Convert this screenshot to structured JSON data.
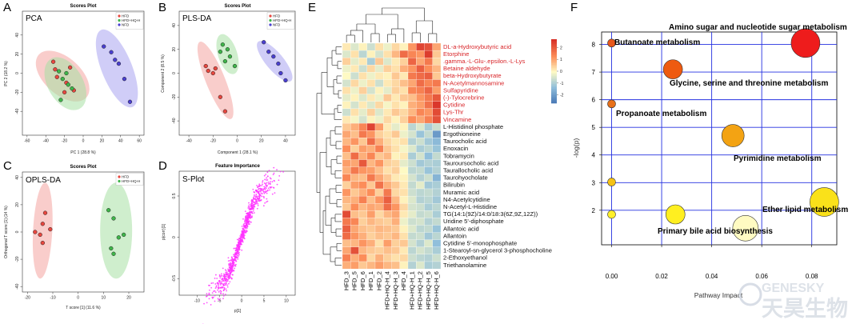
{
  "panels": {
    "A": {
      "letter": "A",
      "title": "Scores Plot",
      "label": "PCA",
      "xlabel": "PC 1 (28.8 %)",
      "ylabel": "PC 2 (18.2 %)",
      "legend": [
        "HFD",
        "HFD+HQ-H",
        "NFD"
      ]
    },
    "B": {
      "letter": "B",
      "title": "Scores Plot",
      "label": "PLS-DA",
      "xlabel": "Component 1 (28.1 %)",
      "ylabel": "Component 2 (8.5 %)",
      "legend": [
        "HFD",
        "HFD+HQ-H",
        "NFD"
      ]
    },
    "C": {
      "letter": "C",
      "title": "Scores Plot",
      "label": "OPLS-DA",
      "xlabel": "T score [1] (11.6 %)",
      "ylabel": "Orthogonal T score [1] (14 %)",
      "legend": [
        "HFD",
        "HFD+HQ-H"
      ]
    },
    "D": {
      "letter": "D",
      "title": "Feature Importance",
      "label": "S-Plot",
      "xlabel": "p[1]",
      "ylabel": "p(corr)[1]"
    },
    "E": {
      "letter": "E"
    },
    "F": {
      "letter": "F",
      "xlabel": "Pathway Impact",
      "ylabel": "-log(p)"
    }
  },
  "colors": {
    "hfd": "#e8473f",
    "hq": "#3fb54a",
    "nfd": "#4a3fd0",
    "hfd_fill": "#f4a4a0",
    "hq_fill": "#a8e0a4",
    "nfd_fill": "#a9a4f0",
    "splot": "#ff33ff",
    "grid_blue": "#2430e0"
  },
  "logo": {
    "line1": "GENESKY",
    "line2": "天昊生物"
  },
  "chart_data": [
    {
      "type": "scatter",
      "panel": "A",
      "title": "Scores Plot",
      "xlabel": "PC 1 (28.8 %)",
      "ylabel": "PC 2 (18.2 %)",
      "xlim": [
        -65,
        65
      ],
      "ylim": [
        -65,
        65
      ],
      "xticks": [
        -60,
        -40,
        -20,
        0,
        20,
        40,
        60
      ],
      "yticks": [
        -40,
        -20,
        0,
        20,
        40
      ],
      "series": [
        {
          "name": "HFD",
          "points": [
            [
              -32,
              12
            ],
            [
              -30,
              4
            ],
            [
              -28,
              -4
            ],
            [
              -18,
              -10
            ],
            [
              -10,
              -18
            ],
            [
              -20,
              -20
            ],
            [
              -14,
              6
            ]
          ]
        },
        {
          "name": "HFD+HQ-H",
          "points": [
            [
              -26,
              2
            ],
            [
              -22,
              -6
            ],
            [
              -16,
              -12
            ],
            [
              -12,
              -16
            ],
            [
              -24,
              -28
            ],
            [
              -18,
              0
            ]
          ]
        },
        {
          "name": "NFD",
          "points": [
            [
              22,
              28
            ],
            [
              30,
              22
            ],
            [
              34,
              14
            ],
            [
              38,
              10
            ],
            [
              44,
              -6
            ],
            [
              50,
              -30
            ]
          ]
        }
      ]
    },
    {
      "type": "scatter",
      "panel": "B",
      "title": "Scores Plot",
      "xlabel": "Component 1 (28.1 %)",
      "ylabel": "Component 2 (8.5 %)",
      "xlim": [
        -48,
        48
      ],
      "ylim": [
        -52,
        52
      ],
      "xticks": [
        -40,
        -20,
        0,
        20,
        40
      ],
      "yticks": [
        -40,
        -20,
        0,
        20,
        40
      ],
      "series": [
        {
          "name": "HFD",
          "points": [
            [
              -26,
              6
            ],
            [
              -24,
              2
            ],
            [
              -20,
              0
            ],
            [
              -18,
              4
            ],
            [
              -14,
              -20
            ],
            [
              -10,
              -32
            ]
          ]
        },
        {
          "name": "HFD+HQ-H",
          "points": [
            [
              -12,
              24
            ],
            [
              -8,
              20
            ],
            [
              -10,
              10
            ],
            [
              -6,
              14
            ],
            [
              -2,
              6
            ],
            [
              -14,
              18
            ]
          ]
        },
        {
          "name": "NFD",
          "points": [
            [
              22,
              26
            ],
            [
              26,
              18
            ],
            [
              30,
              14
            ],
            [
              34,
              8
            ],
            [
              36,
              0
            ],
            [
              40,
              -6
            ]
          ]
        }
      ]
    },
    {
      "type": "scatter",
      "panel": "C",
      "title": "Scores Plot",
      "xlabel": "T score [1] (11.6 %)",
      "ylabel": "Orthogonal T score [1] (14 %)",
      "xlim": [
        -22,
        26
      ],
      "ylim": [
        -44,
        44
      ],
      "xticks": [
        -20,
        -10,
        0,
        10,
        20
      ],
      "yticks": [
        -40,
        -20,
        0,
        20,
        40
      ],
      "series": [
        {
          "name": "HFD",
          "points": [
            [
              -13,
              14
            ],
            [
              -14,
              6
            ],
            [
              -11,
              2
            ],
            [
              -15,
              -2
            ],
            [
              -14,
              -8
            ],
            [
              -17,
              0
            ]
          ]
        },
        {
          "name": "HFD+HQ-H",
          "points": [
            [
              12,
              16
            ],
            [
              14,
              10
            ],
            [
              16,
              -4
            ],
            [
              18,
              -2
            ],
            [
              13,
              -12
            ],
            [
              14,
              -16
            ]
          ]
        }
      ]
    },
    {
      "type": "scatter",
      "panel": "D",
      "title": "Feature Importance",
      "xlabel": "p[1]",
      "ylabel": "p(corr)[1]",
      "xlim": [
        -14,
        12
      ],
      "ylim": [
        -0.7,
        0.8
      ],
      "xticks": [
        -10,
        -5,
        0,
        5,
        10
      ],
      "yticks": [
        -0.5,
        0,
        0.5
      ],
      "trend": "dense positive sigmoid-like cloud of ~900 points from (-12,-0.6) to (10,0.7)"
    },
    {
      "type": "heatmap",
      "panel": "E",
      "columns": [
        "HFD_3",
        "HFD_5",
        "HFD_6",
        "HFD_1",
        "HFD_2",
        "HFD+HQ-H_4",
        "HFD+HQ-H_3",
        "HFD_4",
        "HFD+HQ-H_1",
        "HFD+HQ-H_2",
        "HFD+HQ-H_5",
        "HFD+HQ-H_6"
      ],
      "rows": [
        {
          "name": "DL-a-Hydroxybutyric acid",
          "highlight": true
        },
        {
          "name": "Etorphine",
          "highlight": true
        },
        {
          "name": ".gamma.-L-Glu-.epsilon.-L-Lys",
          "highlight": true
        },
        {
          "name": "Betaine aldehyde",
          "highlight": true
        },
        {
          "name": "beta-Hydroxybutyrate",
          "highlight": true
        },
        {
          "name": "N-Acetylmannosamine",
          "highlight": true
        },
        {
          "name": "Sulfapyridine",
          "highlight": true
        },
        {
          "name": "(-)-Tylocrebrine",
          "highlight": true
        },
        {
          "name": "Cytidine",
          "highlight": true
        },
        {
          "name": "Lys-Thr",
          "highlight": true
        },
        {
          "name": "Vincamine",
          "highlight": true
        },
        {
          "name": "L-Histidinol phosphate",
          "highlight": false
        },
        {
          "name": "Ergothioneine",
          "highlight": false
        },
        {
          "name": "Taurocholic acid",
          "highlight": false
        },
        {
          "name": "Enoxacin",
          "highlight": false
        },
        {
          "name": "Tobramycin",
          "highlight": false
        },
        {
          "name": "Tauroursocholic acid",
          "highlight": false
        },
        {
          "name": "Taurallocholic acid",
          "highlight": false
        },
        {
          "name": "Taurohyocholate",
          "highlight": false
        },
        {
          "name": "Bilirubin",
          "highlight": false
        },
        {
          "name": "Muramic acid",
          "highlight": false
        },
        {
          "name": "N4-Acetylcytidine",
          "highlight": false
        },
        {
          "name": "N-Acetyl-L-Histidine",
          "highlight": false
        },
        {
          "name": "TG(14:1(9Z)/14:0/18:3(6Z,9Z,12Z))",
          "highlight": false
        },
        {
          "name": "Uridine 5'-diphosphate",
          "highlight": false
        },
        {
          "name": "Allantoic acid",
          "highlight": false
        },
        {
          "name": "Allantoin",
          "highlight": false
        },
        {
          "name": "Cytidine 5'-monophosphate",
          "highlight": false
        },
        {
          "name": "1-Stearoyl-sn-glycerol 3-phosphocholine",
          "highlight": false
        },
        {
          "name": "2-Ethoxyethanol",
          "highlight": false
        },
        {
          "name": "Triethanolamine",
          "highlight": false
        }
      ],
      "values": [
        [
          0.2,
          -0.4,
          0.1,
          -0.6,
          0.3,
          -0.2,
          0.4,
          0.1,
          1.2,
          2.4,
          2.2,
          1.0
        ],
        [
          -0.4,
          0.3,
          -0.8,
          0.1,
          -0.5,
          0.3,
          0.8,
          1.8,
          1.4,
          1.2,
          2.5,
          0.6
        ],
        [
          0.5,
          -0.3,
          0.2,
          -1.0,
          0.6,
          -0.4,
          0.2,
          0.5,
          1.9,
          1.0,
          1.6,
          0.4
        ],
        [
          -0.2,
          0.2,
          -0.6,
          0.4,
          -0.3,
          0.5,
          0.3,
          0.9,
          1.2,
          2.0,
          1.3,
          0.8
        ],
        [
          0.0,
          -0.6,
          0.3,
          -0.2,
          0.2,
          0.1,
          0.6,
          0.2,
          1.6,
          1.8,
          2.0,
          0.6
        ],
        [
          -0.5,
          0.4,
          -0.2,
          0.3,
          -0.6,
          0.2,
          0.4,
          0.7,
          1.0,
          1.8,
          1.4,
          1.6
        ],
        [
          0.3,
          -0.2,
          0.5,
          -0.5,
          0.1,
          -0.3,
          0.5,
          0.3,
          1.4,
          1.5,
          1.9,
          1.1
        ],
        [
          -0.3,
          0.1,
          -0.4,
          0.2,
          -0.2,
          0.6,
          0.2,
          0.6,
          0.7,
          1.2,
          1.6,
          2.1
        ],
        [
          0.1,
          -0.5,
          0.2,
          -0.4,
          0.4,
          -0.1,
          0.3,
          0.1,
          0.9,
          1.1,
          1.7,
          2.6
        ],
        [
          -0.6,
          0.3,
          -0.3,
          0.5,
          -0.4,
          0.2,
          0.6,
          0.4,
          0.8,
          1.4,
          1.2,
          2.3
        ],
        [
          0.2,
          -0.1,
          -0.5,
          0.1,
          -0.2,
          0.4,
          0.1,
          0.5,
          1.3,
          1.0,
          1.5,
          2.2
        ],
        [
          0.6,
          0.9,
          1.4,
          2.4,
          1.1,
          0.2,
          -0.3,
          0.1,
          -0.8,
          -0.4,
          -1.0,
          -0.6
        ],
        [
          1.0,
          0.7,
          1.6,
          1.2,
          0.5,
          0.3,
          0.6,
          -0.2,
          -0.5,
          -1.2,
          -0.7,
          -2.0
        ],
        [
          0.8,
          1.2,
          0.6,
          1.8,
          0.9,
          0.4,
          0.2,
          0.3,
          -0.9,
          -0.6,
          -1.1,
          -1.4
        ],
        [
          1.3,
          0.5,
          1.1,
          0.9,
          1.5,
          0.6,
          0.3,
          -0.1,
          -0.4,
          -1.0,
          -0.8,
          -1.2
        ],
        [
          0.7,
          1.8,
          0.9,
          1.4,
          0.6,
          0.8,
          0.1,
          0.2,
          -1.0,
          -0.5,
          -1.3,
          -0.7
        ],
        [
          1.1,
          1.0,
          2.1,
          0.8,
          1.2,
          0.5,
          0.4,
          -0.3,
          -0.6,
          -1.1,
          -0.9,
          -1.0
        ],
        [
          0.9,
          1.6,
          1.2,
          1.1,
          0.7,
          0.3,
          0.5,
          0.0,
          -0.8,
          -0.7,
          -1.2,
          -0.9
        ],
        [
          1.4,
          0.8,
          0.7,
          1.6,
          1.0,
          0.6,
          0.2,
          0.1,
          -0.5,
          -0.9,
          -0.6,
          -1.5
        ],
        [
          0.5,
          1.1,
          1.3,
          0.6,
          1.7,
          0.9,
          0.6,
          0.2,
          -0.7,
          -0.3,
          -1.1,
          -1.0
        ],
        [
          1.2,
          0.6,
          0.9,
          1.3,
          0.5,
          1.6,
          0.4,
          0.3,
          -0.6,
          -0.8,
          -0.7,
          -0.9
        ],
        [
          0.8,
          0.9,
          1.5,
          0.7,
          1.2,
          2.0,
          0.8,
          0.1,
          -0.4,
          -0.9,
          -0.8,
          -1.1
        ],
        [
          0.6,
          1.3,
          0.8,
          1.0,
          0.9,
          1.8,
          1.2,
          0.4,
          -0.5,
          -0.6,
          -1.0,
          -0.8
        ],
        [
          2.3,
          0.7,
          0.6,
          1.1,
          0.4,
          0.8,
          1.0,
          0.2,
          -0.3,
          -0.7,
          -0.6,
          -1.0
        ],
        [
          1.6,
          1.4,
          0.5,
          0.8,
          0.6,
          0.5,
          0.9,
          -0.2,
          -0.6,
          -0.5,
          -0.9,
          -0.7
        ],
        [
          2.0,
          1.0,
          0.7,
          0.6,
          0.8,
          0.7,
          0.6,
          0.1,
          -0.4,
          -0.8,
          -0.7,
          -1.2
        ],
        [
          1.8,
          1.2,
          0.9,
          0.5,
          0.7,
          0.6,
          0.8,
          0.3,
          -0.7,
          -0.6,
          -1.1,
          -0.8
        ],
        [
          0.7,
          0.8,
          1.2,
          0.9,
          0.3,
          1.1,
          0.5,
          0.6,
          -0.5,
          -0.9,
          -0.4,
          -1.3
        ],
        [
          1.0,
          2.2,
          0.8,
          0.6,
          0.5,
          0.7,
          0.6,
          0.2,
          -0.8,
          -0.5,
          -0.7,
          -1.0
        ],
        [
          1.5,
          0.9,
          1.3,
          0.4,
          0.9,
          0.5,
          0.3,
          0.4,
          -0.6,
          -0.8,
          -0.9,
          -0.6
        ],
        [
          0.9,
          1.1,
          0.6,
          0.8,
          1.1,
          0.8,
          0.7,
          0.1,
          -0.9,
          -0.4,
          -1.0,
          -0.9
        ]
      ],
      "colorbar": {
        "ticks": [
          2,
          1,
          0,
          -1,
          -2
        ],
        "range": [
          -2.7,
          2.7
        ]
      }
    },
    {
      "type": "scatter",
      "panel": "F",
      "xlabel": "Pathway Impact",
      "ylabel": "-log(p)",
      "xlim": [
        -0.004,
        0.09
      ],
      "ylim": [
        0.75,
        8.45
      ],
      "xticks": [
        0.0,
        0.02,
        0.04,
        0.06,
        0.08
      ],
      "yticks": [
        2,
        3,
        4,
        5,
        6,
        7,
        8
      ],
      "points": [
        {
          "name": "Amino sugar and nucleotide sugar metabolism",
          "x": 0.0775,
          "y": 8.05,
          "size": 18,
          "color": "#ee1c1c"
        },
        {
          "name": "Butanoate metabolism",
          "x": 0.0,
          "y": 8.05,
          "size": 5,
          "color": "#e8581c"
        },
        {
          "name": "Glycine, serine and threonine metabolism",
          "x": 0.0245,
          "y": 7.1,
          "size": 12,
          "color": "#ee5a10"
        },
        {
          "name": "Propanoate metabolism",
          "x": 0.0,
          "y": 5.85,
          "size": 5,
          "color": "#e8701a"
        },
        {
          "name": "Pyrimidine metabolism",
          "x": 0.0485,
          "y": 4.7,
          "size": 14,
          "color": "#f3a313"
        },
        {
          "name": "",
          "x": 0.0,
          "y": 3.02,
          "size": 5,
          "color": "#f5c215"
        },
        {
          "name": "Ether lipid metabolism",
          "x": 0.085,
          "y": 2.3,
          "size": 18,
          "color": "#fae11a"
        },
        {
          "name": "Primary bile acid biosynthesis",
          "x": 0.0255,
          "y": 1.85,
          "size": 12,
          "color": "#ffef20"
        },
        {
          "name": "",
          "x": 0.0,
          "y": 1.85,
          "size": 5,
          "color": "#ffef2a"
        },
        {
          "name": "",
          "x": 0.0535,
          "y": 1.35,
          "size": 16,
          "color": "#fffbc2"
        }
      ]
    }
  ]
}
